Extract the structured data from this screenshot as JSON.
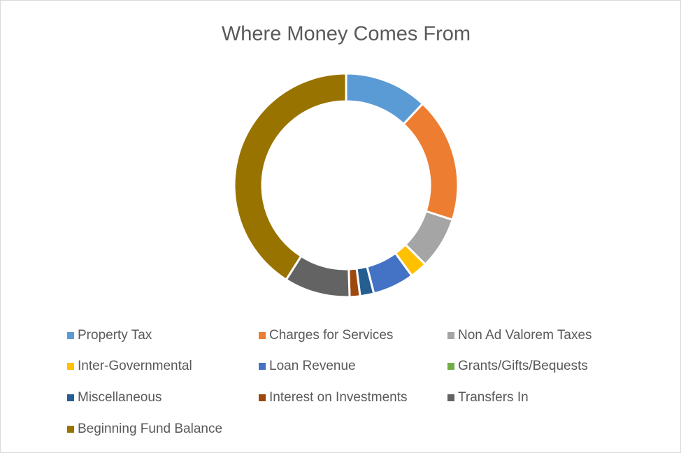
{
  "chart_data": {
    "type": "donut",
    "title": "Where Money Comes From",
    "categories": [
      "Property Tax",
      "Charges for Services",
      "Non Ad Valorem Taxes",
      "Inter-Governmental",
      "Loan Revenue",
      "Grants/Gifts/Bequests",
      "Miscellaneous",
      "Interest on Investments",
      "Transfers In",
      "Beginning Fund Balance"
    ],
    "values": [
      12,
      18,
      7.5,
      2.5,
      6,
      0,
      2,
      1.5,
      9.5,
      41
    ],
    "colors": [
      "#5B9BD5",
      "#ED7D31",
      "#A5A5A5",
      "#FFC000",
      "#4472C4",
      "#70AD47",
      "#255E91",
      "#9E480E",
      "#636363",
      "#997300"
    ],
    "legend": "bottom"
  }
}
